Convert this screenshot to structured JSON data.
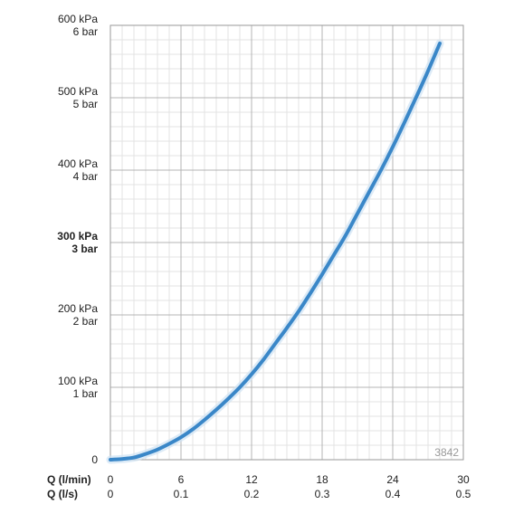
{
  "chart_data": {
    "type": "line",
    "title": "",
    "xlabel": "Q (l/min)",
    "xlabel2": "Q (l/s)",
    "xlim": [
      0,
      30
    ],
    "ylim": [
      0,
      600
    ],
    "x_ticks": [
      {
        "value": 0,
        "label": "0",
        "label2": "0"
      },
      {
        "value": 6,
        "label": "6",
        "label2": "0.1"
      },
      {
        "value": 12,
        "label": "12",
        "label2": "0.2"
      },
      {
        "value": 18,
        "label": "18",
        "label2": "0.3"
      },
      {
        "value": 24,
        "label": "24",
        "label2": "0.4"
      },
      {
        "value": 30,
        "label": "30",
        "label2": "0.5"
      }
    ],
    "y_ticks": [
      {
        "value": 0,
        "line1": "0",
        "line2": "",
        "bold": false
      },
      {
        "value": 100,
        "line1": "100 kPa",
        "line2": "1 bar",
        "bold": false
      },
      {
        "value": 200,
        "line1": "200 kPa",
        "line2": "2 bar",
        "bold": false
      },
      {
        "value": 300,
        "line1": "300 kPa",
        "line2": "3 bar",
        "bold": true
      },
      {
        "value": 400,
        "line1": "400 kPa",
        "line2": "4 bar",
        "bold": false
      },
      {
        "value": 500,
        "line1": "500 kPa",
        "line2": "5 bar",
        "bold": false
      },
      {
        "value": 600,
        "line1": "600 kPa",
        "line2": "6 bar",
        "bold": false
      }
    ],
    "grid": true,
    "annotation": "3842",
    "series": [
      {
        "color": "#3a87c8",
        "x": [
          0,
          1,
          2,
          3,
          4,
          5,
          6,
          7,
          8,
          9,
          10,
          11,
          12,
          13,
          14,
          15,
          16,
          17,
          18,
          19,
          20,
          21,
          22,
          23,
          24,
          25,
          26,
          27,
          28
        ],
        "y": [
          0,
          1,
          3,
          8,
          14,
          22,
          31,
          42,
          55,
          69,
          84,
          100,
          118,
          138,
          160,
          182,
          205,
          230,
          256,
          283,
          310,
          340,
          370,
          400,
          432,
          466,
          501,
          537,
          575
        ]
      }
    ]
  }
}
